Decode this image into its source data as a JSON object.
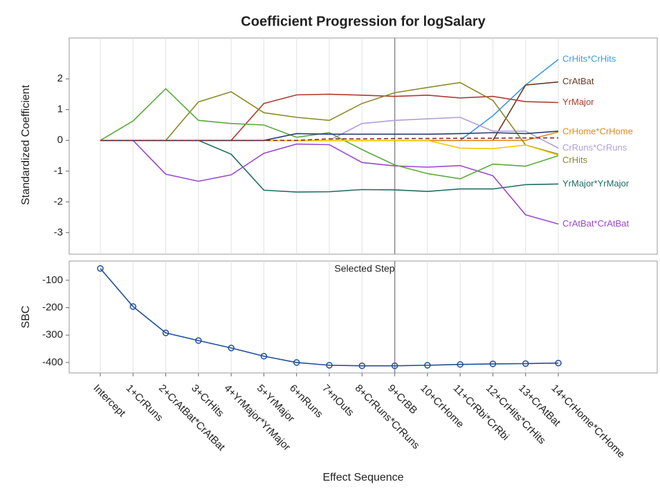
{
  "chart_data": [
    {
      "type": "line",
      "title": "Coefficient Progression for logSalary",
      "ylabel": "Standardized Coefficient",
      "ylim": [
        -3.7,
        3.33
      ],
      "yticks": [
        -3,
        -2,
        -1,
        0,
        1,
        2
      ],
      "grid": true,
      "series": [
        {
          "name": "CrHits*CrHits",
          "color": "#3a9ae0",
          "values": [
            0,
            0,
            0,
            0,
            0,
            0,
            0,
            0,
            0,
            0,
            0,
            0,
            0.8,
            1.8,
            2.63
          ]
        },
        {
          "name": "CrAtBat",
          "color": "#6b3a1e",
          "values": [
            0,
            0,
            0,
            0,
            0,
            0,
            0,
            0,
            0,
            0,
            0,
            0,
            0,
            1.8,
            1.9
          ]
        },
        {
          "name": "YrMajor",
          "color": "#b03a2e",
          "values": [
            0,
            0,
            0,
            0,
            0,
            1.2,
            1.48,
            1.5,
            1.47,
            1.43,
            1.47,
            1.38,
            1.43,
            1.26,
            1.23
          ]
        },
        {
          "name": "CrHome*CrHome",
          "color": "#e08a1e",
          "values": [
            0,
            0,
            0,
            0,
            0,
            0,
            0,
            0,
            0,
            0,
            0,
            0,
            0,
            0,
            0.27
          ]
        },
        {
          "name": "CrRuns*CrRuns",
          "color": "#b39ddb",
          "values": [
            0,
            0,
            0,
            0,
            0,
            0,
            0,
            0,
            0.55,
            0.65,
            0.7,
            0.75,
            0.3,
            0.3,
            -0.25
          ]
        },
        {
          "name": "CrHits",
          "color": "#8a8a2a",
          "values": [
            0,
            0,
            0,
            1.25,
            1.58,
            0.9,
            0.75,
            0.65,
            1.2,
            1.55,
            1.72,
            1.88,
            1.3,
            -0.15,
            -0.45
          ]
        },
        {
          "name": "YrMajor*YrMajor",
          "color": "#1e6e60",
          "values": [
            0,
            0,
            0,
            0,
            -0.45,
            -1.62,
            -1.68,
            -1.67,
            -1.6,
            -1.61,
            -1.66,
            -1.58,
            -1.58,
            -1.44,
            -1.42
          ]
        },
        {
          "name": "CrAtBat*CrAtBat",
          "color": "#9b48d0",
          "values": [
            0,
            0,
            -1.1,
            -1.33,
            -1.12,
            -0.42,
            -0.12,
            -0.14,
            -0.72,
            -0.83,
            -0.87,
            -0.82,
            -1.15,
            -2.42,
            -2.72
          ]
        },
        {
          "color": "#5aaa3a",
          "values": [
            0,
            0.63,
            1.68,
            0.65,
            0.55,
            0.5,
            0.1,
            0.25,
            -0.3,
            -0.8,
            -1.08,
            -1.25,
            -0.77,
            -0.84,
            -0.5
          ]
        },
        {
          "color": "#f0c800",
          "values": [
            0,
            0,
            0,
            0,
            0,
            0,
            0,
            0,
            0,
            0,
            0,
            -0.25,
            -0.27,
            -0.15,
            -0.48
          ]
        },
        {
          "color": "#2a3a7a",
          "values": [
            0,
            0,
            0,
            0,
            0,
            0,
            0.22,
            0.2,
            0.2,
            0.2,
            0.2,
            0.22,
            0.25,
            0.22,
            0.3
          ]
        },
        {
          "color": "#8b2a2a",
          "dashed": true,
          "values": [
            0,
            0,
            0,
            0,
            0,
            0,
            0,
            0.05,
            0.05,
            0.06,
            0.06,
            0.07,
            0.07,
            0.08,
            0.08
          ]
        }
      ]
    },
    {
      "type": "line",
      "ylabel": "SBC",
      "xlabel": "Effect Sequence",
      "annotation": "Selected Step",
      "selected_step": "9+CrBB",
      "ylim": [
        -438,
        -30
      ],
      "yticks": [
        -400,
        -300,
        -200,
        -100
      ],
      "grid": true,
      "color": "#1f4e9c",
      "markers": true,
      "categories": [
        "Intercept",
        "1+CrRuns",
        "2+CrAtBat*CrAtBat",
        "3+CrHits",
        "4+YrMajor*YrMajor",
        "5+YrMajor",
        "6+nRuns",
        "7+nOuts",
        "8+CrRuns*CrRuns",
        "9+CrBB",
        "10+CrHome",
        "11+CrRbi*CrRbi",
        "12+CrHits*CrHits",
        "13+CrAtBat",
        "14+CrHome*CrHome"
      ],
      "values": [
        -57,
        -196,
        -292,
        -320,
        -347,
        -377,
        -400,
        -410,
        -412,
        -412,
        -410,
        -407,
        -405,
        -404,
        -402
      ]
    }
  ]
}
